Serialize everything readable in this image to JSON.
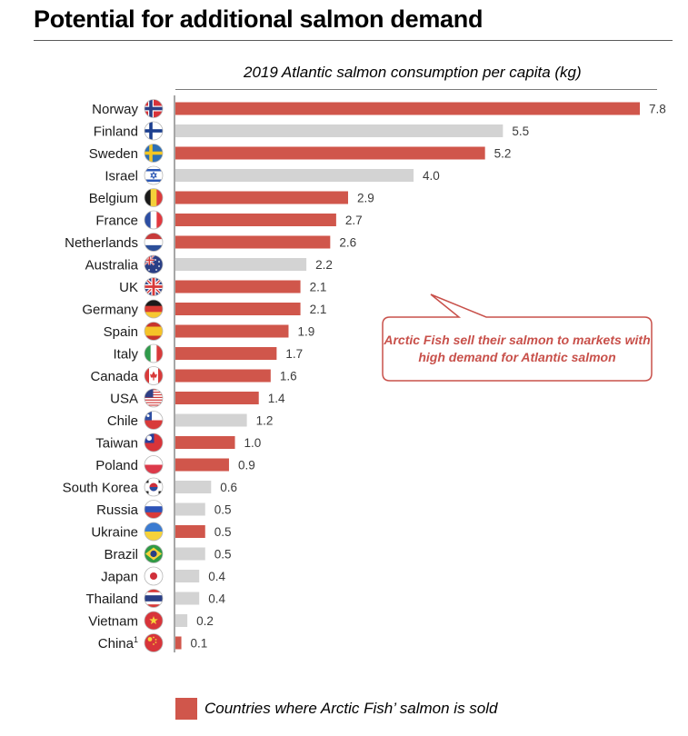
{
  "title": "Potential for additional salmon demand",
  "chart_data": {
    "type": "bar",
    "orientation": "horizontal",
    "title": "2019 Atlantic salmon consumption per capita (kg)",
    "xlim": [
      0,
      8
    ],
    "grid": false,
    "colors": {
      "sold": "#d0564b",
      "not_sold": "#d3d3d3"
    },
    "categories": [
      "Norway",
      "Finland",
      "Sweden",
      "Israel",
      "Belgium",
      "France",
      "Netherlands",
      "Australia",
      "UK",
      "Germany",
      "Spain",
      "Italy",
      "Canada",
      "USA",
      "Chile",
      "Taiwan",
      "Poland",
      "South Korea",
      "Russia",
      "Ukraine",
      "Brazil",
      "Japan",
      "Thailand",
      "Vietnam",
      "China"
    ],
    "category_superscripts": {
      "China": "1"
    },
    "values": [
      7.8,
      5.5,
      5.2,
      4.0,
      2.9,
      2.7,
      2.6,
      2.2,
      2.1,
      2.1,
      1.9,
      1.7,
      1.6,
      1.4,
      1.2,
      1.0,
      0.9,
      0.6,
      0.5,
      0.5,
      0.5,
      0.4,
      0.4,
      0.2,
      0.1
    ],
    "value_labels": [
      "7.8",
      "5.5",
      "5.2",
      "4.0",
      "2.9",
      "2.7",
      "2.6",
      "2.2",
      "2.1",
      "2.1",
      "1.9",
      "1.7",
      "1.6",
      "1.4",
      "1.2",
      "1.0",
      "0.9",
      "0.6",
      "0.5",
      "0.5",
      "0.5",
      "0.4",
      "0.4",
      "0.2",
      "0.1"
    ],
    "sold": [
      true,
      false,
      true,
      false,
      true,
      true,
      true,
      false,
      true,
      true,
      true,
      true,
      true,
      true,
      false,
      true,
      true,
      false,
      false,
      true,
      false,
      false,
      false,
      false,
      true
    ],
    "flag_icons": [
      "norway-flag-icon",
      "finland-flag-icon",
      "sweden-flag-icon",
      "israel-flag-icon",
      "belgium-flag-icon",
      "france-flag-icon",
      "netherlands-flag-icon",
      "australia-flag-icon",
      "uk-flag-icon",
      "germany-flag-icon",
      "spain-flag-icon",
      "italy-flag-icon",
      "canada-flag-icon",
      "usa-flag-icon",
      "chile-flag-icon",
      "taiwan-flag-icon",
      "poland-flag-icon",
      "south-korea-flag-icon",
      "russia-flag-icon",
      "ukraine-flag-icon",
      "brazil-flag-icon",
      "japan-flag-icon",
      "thailand-flag-icon",
      "vietnam-flag-icon",
      "china-flag-icon"
    ],
    "annotation": "Arctic Fish sell their salmon to markets with high demand for Atlantic salmon",
    "legend": {
      "label": "Countries where Arctic Fish’ salmon is sold",
      "position": "bottom"
    }
  }
}
